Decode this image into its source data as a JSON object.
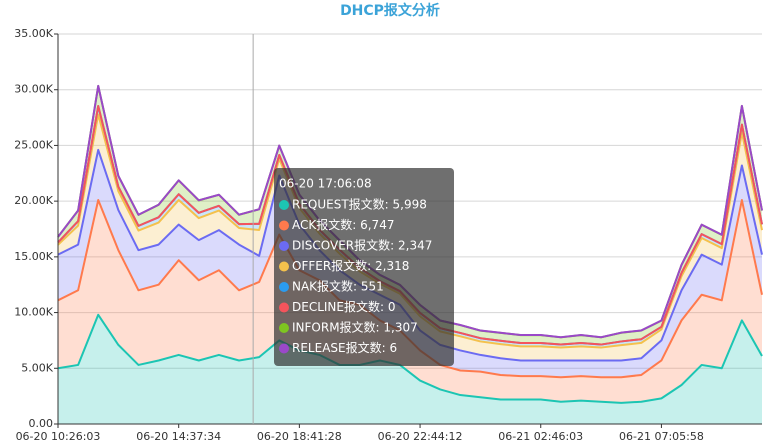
{
  "chart_data": {
    "type": "stacked-area",
    "title": "DHCP报文分析",
    "categories": [
      "06-20 10:26:03",
      null,
      null,
      null,
      null,
      null,
      "06-20 14:37:34",
      null,
      null,
      null,
      null,
      null,
      "06-20 18:41:28",
      null,
      null,
      null,
      null,
      null,
      "06-20 22:44:12",
      null,
      null,
      null,
      null,
      null,
      "06-21 02:46:03",
      null,
      null,
      null,
      null,
      null,
      "06-21 07:05:58",
      null,
      null,
      null,
      null,
      null
    ],
    "series": [
      {
        "name": "REQUEST报文数",
        "color": "#1cc5b3",
        "values": [
          5000,
          5300,
          9800,
          7100,
          5300,
          5700,
          6200,
          5700,
          6200,
          5700,
          5998,
          7500,
          6600,
          6200,
          5300,
          5300,
          5700,
          5300,
          3900,
          3100,
          2600,
          2400,
          2200,
          2200,
          2200,
          2000,
          2100,
          2000,
          1900,
          2000,
          2300,
          3500,
          5300,
          5000,
          9300,
          6100
        ]
      },
      {
        "name": "ACK报文数",
        "color": "#ff7a4d",
        "values": [
          6100,
          6700,
          10300,
          8500,
          6700,
          6800,
          8500,
          7200,
          7600,
          6300,
          6747,
          9500,
          7200,
          6700,
          5800,
          5400,
          3600,
          3100,
          2700,
          2200,
          2200,
          2300,
          2200,
          2100,
          2100,
          2200,
          2200,
          2200,
          2300,
          2400,
          3400,
          5800,
          6300,
          6100,
          10800,
          5500
        ]
      },
      {
        "name": "DISCOVER报文数",
        "color": "#6b6bf2",
        "values": [
          4100,
          4100,
          4500,
          3600,
          3600,
          3600,
          3200,
          3600,
          3600,
          4100,
          2347,
          5300,
          4100,
          2700,
          2700,
          1800,
          2300,
          2300,
          1800,
          1800,
          1800,
          1500,
          1500,
          1400,
          1400,
          1500,
          1400,
          1500,
          1500,
          1500,
          1800,
          2700,
          3600,
          3200,
          3100,
          3600
        ]
      },
      {
        "name": "OFFER报文数",
        "color": "#f4c14c",
        "values": [
          880,
          1700,
          3190,
          1700,
          1760,
          1980,
          2200,
          1980,
          1760,
          1490,
          2318,
          1490,
          1490,
          1490,
          1490,
          1210,
          990,
          990,
          1270,
          1210,
          1270,
          1210,
          1270,
          1270,
          1270,
          1160,
          1270,
          1160,
          1380,
          1380,
          990,
          1270,
          1490,
          1490,
          2970,
          2200
        ]
      },
      {
        "name": "NAK报文数",
        "color": "#2b9cf0",
        "values": [
          210,
          400,
          750,
          400,
          420,
          470,
          520,
          470,
          420,
          350,
          551,
          350,
          350,
          350,
          350,
          290,
          230,
          230,
          300,
          290,
          300,
          290,
          300,
          300,
          300,
          270,
          300,
          270,
          330,
          330,
          230,
          300,
          350,
          350,
          700,
          520
        ]
      },
      {
        "name": "DECLINE报文数",
        "color": "#f5545c",
        "values": [
          0,
          0,
          0,
          0,
          0,
          0,
          0,
          0,
          0,
          0,
          0,
          0,
          0,
          0,
          0,
          0,
          0,
          0,
          0,
          0,
          0,
          0,
          0,
          0,
          0,
          0,
          0,
          0,
          0,
          0,
          0,
          0,
          0,
          0,
          0,
          0
        ]
      },
      {
        "name": "INFORM报文数",
        "color": "#7ec521",
        "values": [
          500,
          960,
          1800,
          960,
          990,
          1120,
          1240,
          1120,
          990,
          840,
          1307,
          840,
          840,
          840,
          840,
          680,
          560,
          560,
          710,
          680,
          710,
          680,
          710,
          710,
          710,
          650,
          710,
          650,
          780,
          780,
          560,
          710,
          840,
          840,
          1670,
          1240
        ]
      },
      {
        "name": "RELEASE报文数",
        "color": "#9a48c9",
        "values": [
          6,
          6,
          6,
          6,
          6,
          6,
          6,
          6,
          6,
          6,
          6,
          6,
          6,
          6,
          6,
          6,
          6,
          6,
          6,
          6,
          6,
          6,
          6,
          6,
          6,
          6,
          6,
          6,
          6,
          6,
          6,
          6,
          6,
          6,
          6,
          6
        ]
      }
    ],
    "ylim": [
      0,
      35000
    ],
    "yticks": [
      {
        "value": 0,
        "label": "0.00"
      },
      {
        "value": 5000,
        "label": "5.00K"
      },
      {
        "value": 10000,
        "label": "10.00K"
      },
      {
        "value": 15000,
        "label": "15.00K"
      },
      {
        "value": 20000,
        "label": "20.00K"
      },
      {
        "value": 25000,
        "label": "25.00K"
      },
      {
        "value": 30000,
        "label": "30.00K"
      },
      {
        "value": 35000,
        "label": "35.00K"
      }
    ],
    "grid": true,
    "tooltip": {
      "title": "06-20 17:06:08",
      "items": [
        "REQUEST报文数: 5,998",
        "ACK报文数: 6,747",
        "DISCOVER报文数: 2,347",
        "OFFER报文数: 2,318",
        "NAK报文数: 551",
        "DECLINE报文数: 0",
        "INFORM报文数: 1,307",
        "RELEASE报文数: 6"
      ]
    }
  }
}
